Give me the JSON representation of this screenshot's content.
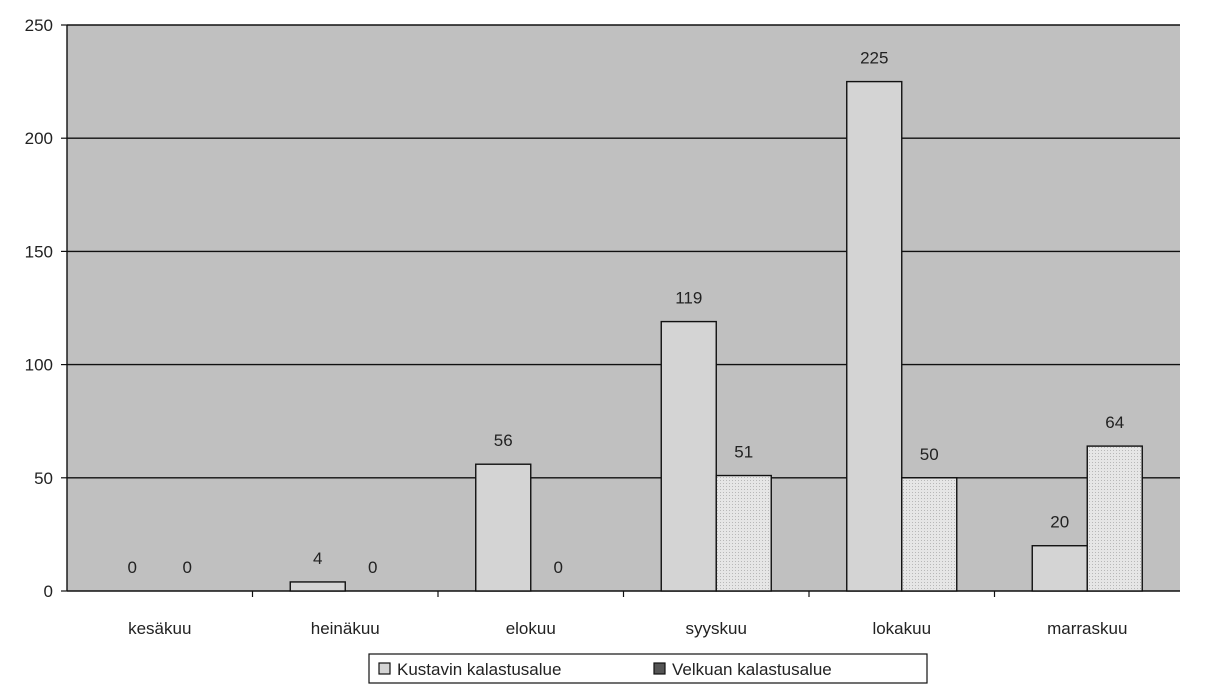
{
  "chart_data": {
    "type": "bar",
    "categories": [
      "kesäkuu",
      "heinäkuu",
      "elokuu",
      "syyskuu",
      "lokakuu",
      "marraskuu"
    ],
    "series": [
      {
        "name": "Kustavin kalastusalue",
        "values": [
          0,
          4,
          56,
          119,
          225,
          20
        ],
        "color": "#d4d4d4"
      },
      {
        "name": "Velkuan kalastusalue",
        "values": [
          0,
          0,
          0,
          51,
          50,
          64
        ],
        "color": "#e6e6e6"
      }
    ],
    "ylim": [
      0,
      250
    ],
    "yticks": [
      0,
      50,
      100,
      150,
      200,
      250
    ],
    "grid": true,
    "plot_background": "#c0c0c0",
    "legend_position": "bottom",
    "data_labels": [
      [
        "0",
        "4",
        "56",
        "119",
        "225",
        "20"
      ],
      [
        "0",
        "0",
        "0",
        "51",
        "50",
        "64"
      ]
    ]
  }
}
